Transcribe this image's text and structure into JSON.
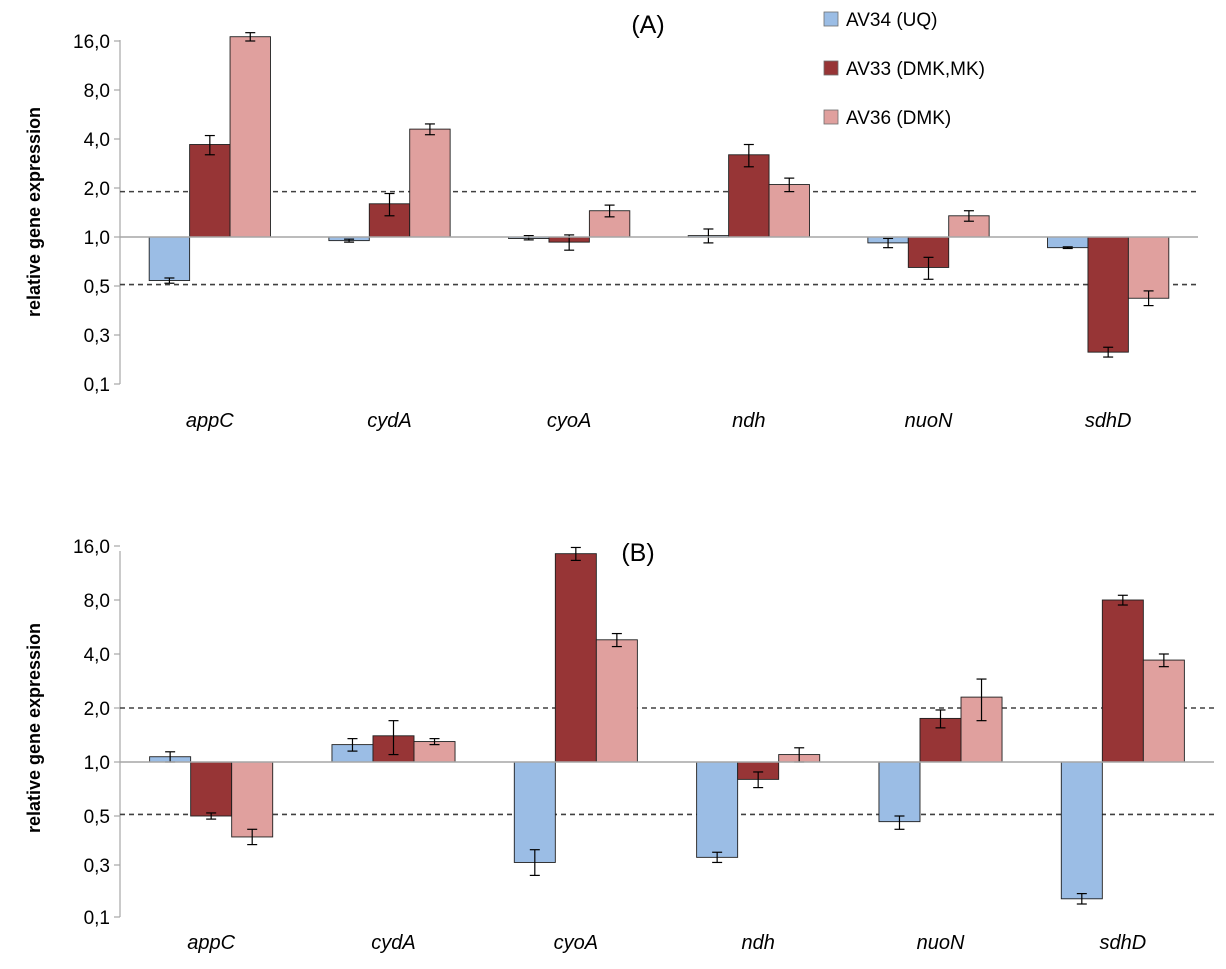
{
  "colors": {
    "AV34": "#9bbde5",
    "AV33": "#973536",
    "AV36": "#e0a09e",
    "axis": "#a6a6a6",
    "ref_line": "#404040"
  },
  "legend": {
    "position": "top-right",
    "items": [
      "AV34 (UQ)",
      "AV33 (DMK,MK)",
      "AV36 (DMK)"
    ]
  },
  "chart_data": [
    {
      "type": "bar",
      "title": "(A)",
      "ylabel": "relative gene expression",
      "yscale": "log2",
      "yticks": [
        0.1,
        0.3,
        0.5,
        1.0,
        2.0,
        4.0,
        8.0,
        16.0
      ],
      "ytick_labels": [
        "0,1",
        "0,3",
        "0,5",
        "1,0",
        "2,0",
        "4,0",
        "8,0",
        "16,0"
      ],
      "ylim": [
        0.13,
        20
      ],
      "baseline": 1.0,
      "reference_lines": [
        1.9,
        0.51
      ],
      "categories": [
        "appC",
        "cydA",
        "cyoA",
        "ndh",
        "nuoN",
        "sdhD"
      ],
      "series": [
        {
          "name": "AV34 (UQ)",
          "values": [
            0.54,
            0.95,
            0.99,
            1.02,
            0.92,
            0.86
          ],
          "errors": [
            0.02,
            0.02,
            0.03,
            0.1,
            0.06,
            0.01
          ]
        },
        {
          "name": "AV33 (DMK,MK)",
          "values": [
            3.7,
            1.6,
            0.93,
            3.2,
            0.65,
            0.23
          ],
          "errors": [
            0.5,
            0.25,
            0.1,
            0.5,
            0.1,
            0.02
          ]
        },
        {
          "name": "AV36 (DMK)",
          "values": [
            17,
            4.6,
            1.45,
            2.1,
            1.35,
            0.45
          ],
          "errors": [
            1.0,
            0.35,
            0.12,
            0.2,
            0.1,
            0.03
          ]
        }
      ]
    },
    {
      "type": "bar",
      "title": "(B)",
      "ylabel": "relative gene expression",
      "yscale": "log2",
      "yticks": [
        0.1,
        0.3,
        0.5,
        1.0,
        2.0,
        4.0,
        8.0,
        16.0
      ],
      "ytick_labels": [
        "0,1",
        "0,3",
        "0,5",
        "1,0",
        "2,0",
        "4,0",
        "8,0",
        "16,0"
      ],
      "ylim": [
        0.13,
        20
      ],
      "baseline": 1.0,
      "reference_lines": [
        2.0,
        0.51
      ],
      "categories": [
        "appC",
        "cydA",
        "cyoA",
        "ndh",
        "nuoN",
        "sdhD"
      ],
      "series": [
        {
          "name": "AV34 (UQ)",
          "values": [
            1.07,
            1.25,
            0.31,
            0.33,
            0.47,
            0.17
          ],
          "errors": [
            0.07,
            0.1,
            0.05,
            0.02,
            0.03,
            0.02
          ]
        },
        {
          "name": "AV33 (DMK,MK)",
          "values": [
            0.5,
            1.4,
            14.5,
            0.8,
            1.75,
            8.0
          ],
          "errors": [
            0.02,
            0.3,
            1.2,
            0.08,
            0.2,
            0.5
          ]
        },
        {
          "name": "AV36 (DMK)",
          "values": [
            0.41,
            1.3,
            4.8,
            1.1,
            2.3,
            3.7
          ],
          "errors": [
            0.03,
            0.05,
            0.4,
            0.1,
            0.6,
            0.3
          ]
        }
      ]
    }
  ]
}
